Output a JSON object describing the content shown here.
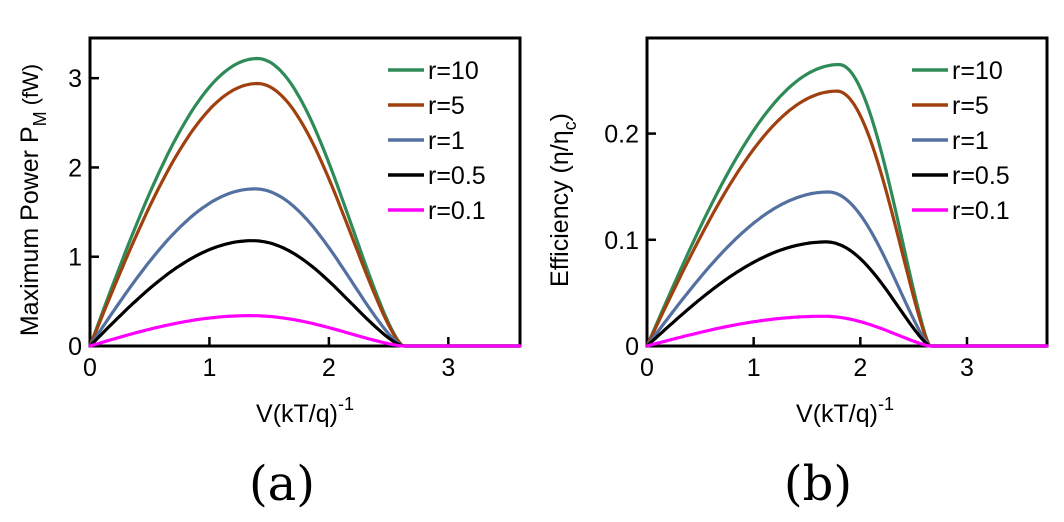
{
  "figure": {
    "panel_a_label": "(a)",
    "panel_b_label": "(b)"
  },
  "chart_data": [
    {
      "type": "line",
      "panel": "(a)",
      "title": "",
      "xlabel": "V(kT/q)",
      "xlabel_superscript": "-1",
      "ylabel": "Maximum Power P",
      "ylabel_subscript": "M",
      "ylabel_unit": "(fW)",
      "xlim": [
        0,
        3.6
      ],
      "ylim": [
        0,
        3.45
      ],
      "xticks": [
        0,
        1,
        2,
        3
      ],
      "xtick_labels": [
        "0",
        "1",
        "2",
        "3"
      ],
      "yticks": [
        0,
        1,
        2,
        3
      ],
      "ytick_labels": [
        "0",
        "1",
        "2",
        "3"
      ],
      "legend_position": "top-right",
      "grid": false,
      "series": [
        {
          "name": "r=10",
          "color": "#2e8b57",
          "peak": 3.22,
          "peak_x": 1.4,
          "zero_x": 2.62
        },
        {
          "name": "r=5",
          "color": "#a0400f",
          "peak": 2.94,
          "peak_x": 1.4,
          "zero_x": 2.62
        },
        {
          "name": "r=1",
          "color": "#5470a0",
          "peak": 1.76,
          "peak_x": 1.38,
          "zero_x": 2.62
        },
        {
          "name": "r=0.5",
          "color": "#000000",
          "peak": 1.18,
          "peak_x": 1.36,
          "zero_x": 2.62
        },
        {
          "name": "r=0.1",
          "color": "#ff00ff",
          "peak": 0.34,
          "peak_x": 1.34,
          "zero_x": 2.62
        }
      ]
    },
    {
      "type": "line",
      "panel": "(b)",
      "title": "",
      "xlabel": "V(kT/q)",
      "xlabel_superscript": "-1",
      "ylabel": "Efficiency (η/η",
      "ylabel_subscript": "c",
      "ylabel_unit": ")",
      "xlim": [
        0,
        3.75
      ],
      "ylim": [
        0,
        0.29
      ],
      "xticks": [
        0,
        1,
        2,
        3
      ],
      "xtick_labels": [
        "0",
        "1",
        "2",
        "3"
      ],
      "yticks": [
        0,
        0.1,
        0.2
      ],
      "ytick_labels": [
        "0",
        "0.1",
        "0.2"
      ],
      "legend_position": "top-right",
      "grid": false,
      "series": [
        {
          "name": "r=10",
          "color": "#2e8b57",
          "peak": 0.265,
          "peak_x": 1.8,
          "zero_x": 2.65
        },
        {
          "name": "r=5",
          "color": "#a0400f",
          "peak": 0.24,
          "peak_x": 1.78,
          "zero_x": 2.65
        },
        {
          "name": "r=1",
          "color": "#5470a0",
          "peak": 0.145,
          "peak_x": 1.7,
          "zero_x": 2.65
        },
        {
          "name": "r=0.5",
          "color": "#000000",
          "peak": 0.098,
          "peak_x": 1.68,
          "zero_x": 2.65
        },
        {
          "name": "r=0.1",
          "color": "#ff00ff",
          "peak": 0.028,
          "peak_x": 1.65,
          "zero_x": 2.65
        }
      ]
    }
  ]
}
